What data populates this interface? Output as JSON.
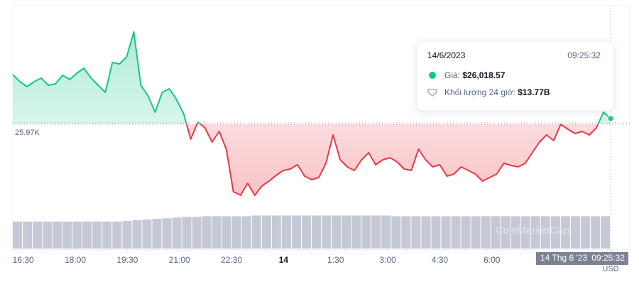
{
  "chart_data": {
    "type": "line",
    "xlim": [
      16.2,
      33.42
    ],
    "xticks": [
      {
        "value": 16.5,
        "label": "16:30"
      },
      {
        "value": 18,
        "label": "18:00"
      },
      {
        "value": 19.5,
        "label": "19:30"
      },
      {
        "value": 21,
        "label": "21:00"
      },
      {
        "value": 22.5,
        "label": "22:30"
      },
      {
        "value": 24,
        "label": "14"
      },
      {
        "value": 25.5,
        "label": "1:30"
      },
      {
        "value": 27,
        "label": "3:00"
      },
      {
        "value": 28.5,
        "label": "4:30"
      },
      {
        "value": 30,
        "label": "6:00"
      }
    ],
    "ylim": [
      24920,
      26972
    ],
    "y2lim": [
      0,
      360
    ],
    "baseline": {
      "value": 25970,
      "label": "25.97K"
    },
    "up_color": "#16c784",
    "down_color": "#ea3943",
    "series": [
      {
        "values": [
          26390,
          26330,
          26288,
          26330,
          26360,
          26300,
          26312,
          26384,
          26348,
          26402,
          26444,
          26360,
          26300,
          26240,
          26492,
          26480,
          26540,
          26750,
          26300,
          26210,
          26072,
          26240,
          26270,
          26180,
          26060,
          25844,
          25988,
          25940,
          25820,
          25910,
          25760,
          25400,
          25370,
          25472,
          25370,
          25448,
          25490,
          25538,
          25580,
          25592,
          25628,
          25532,
          25502,
          25520,
          25640,
          25880,
          25670,
          25610,
          25580,
          25670,
          25730,
          25628,
          25670,
          25688,
          25652,
          25592,
          25580,
          25760,
          25670,
          25610,
          25628,
          25532,
          25550,
          25610,
          25580,
          25550,
          25490,
          25520,
          25550,
          25640,
          25622,
          25610,
          25640,
          25730,
          25820,
          25880,
          25832,
          25970,
          25928,
          25892,
          25910,
          25880,
          25940,
          26072,
          26018.57
        ]
      },
      {
        "axis": "y2",
        "type": "bar",
        "color": "#c5c9d6",
        "values": [
          40,
          40,
          40,
          40,
          40,
          40,
          40,
          40,
          40,
          40,
          40,
          41,
          42,
          43,
          44,
          45,
          46,
          47,
          47,
          48,
          48,
          48,
          48,
          48,
          49,
          49,
          49,
          49,
          49,
          49,
          49,
          49,
          49,
          49,
          49,
          49,
          49,
          49,
          48,
          48,
          48,
          48,
          48,
          48,
          48,
          48,
          48,
          48,
          48,
          48,
          48,
          48,
          48,
          48,
          48,
          48,
          48,
          48,
          48,
          48
        ]
      }
    ],
    "tooltip": {
      "date": "14/6/2023",
      "time": "09:25:32",
      "price_label": "Giá:",
      "price": "$26,018.57",
      "volume_label": "Khối lượng 24 giờ:",
      "volume": "$13.77B"
    },
    "crosshair": {
      "date": "14 Thg 6 '23",
      "time": "09:25:32",
      "currency": "USD"
    },
    "watermark": "CoinMarketCap"
  }
}
